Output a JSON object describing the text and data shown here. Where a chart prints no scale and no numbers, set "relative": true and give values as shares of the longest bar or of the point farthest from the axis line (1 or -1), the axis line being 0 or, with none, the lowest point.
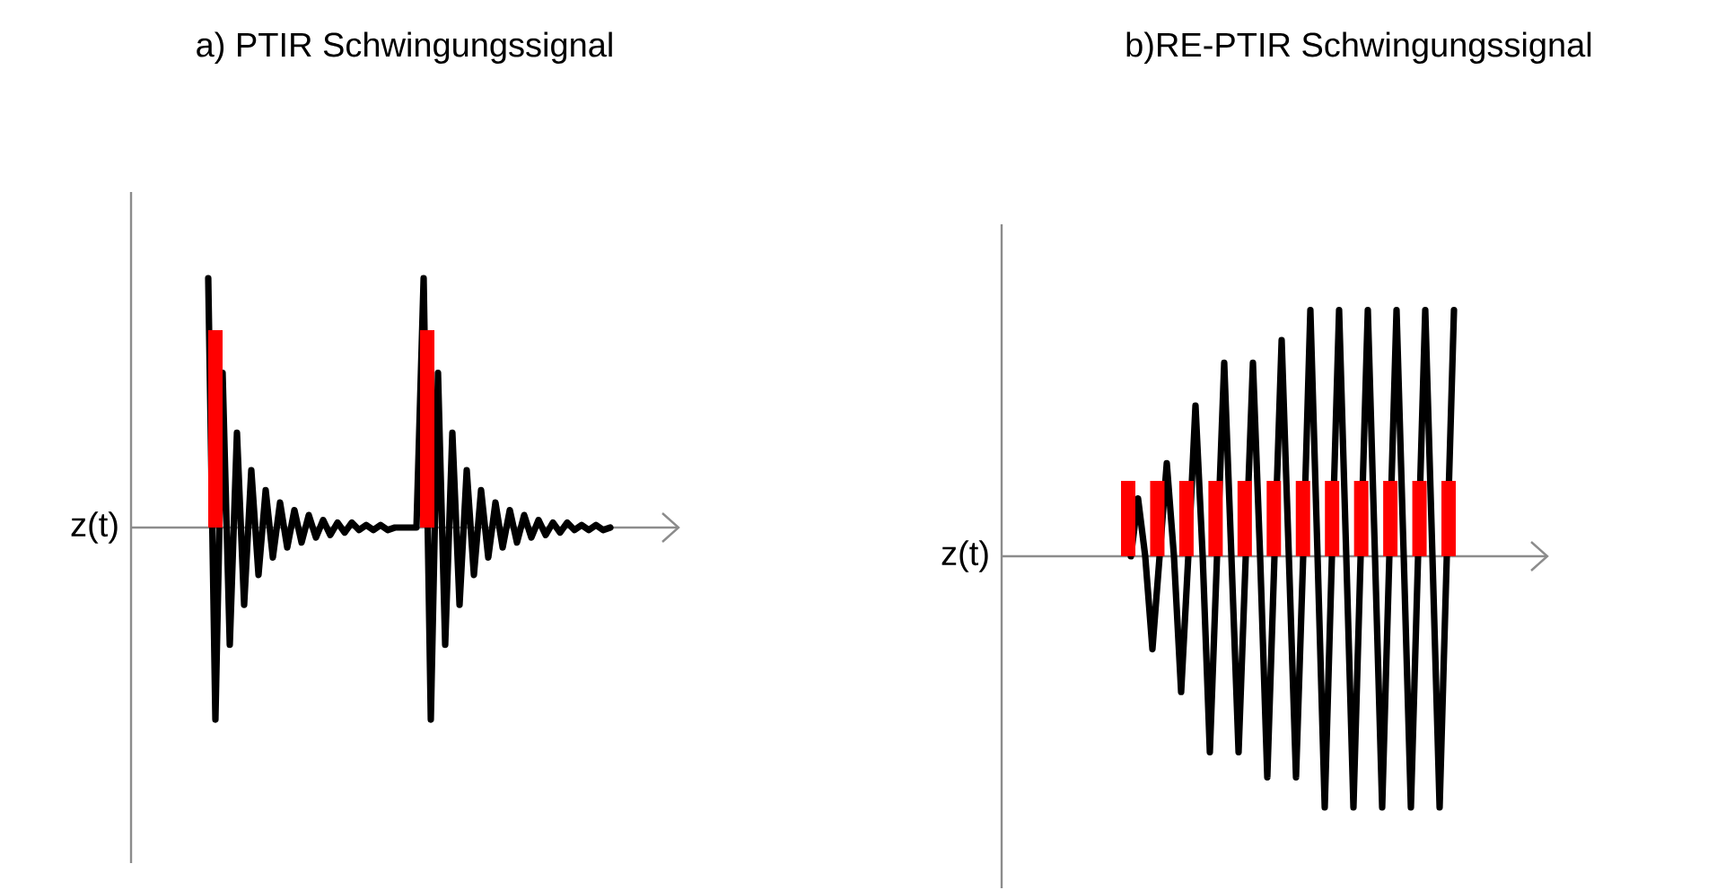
{
  "chart_data": [
    {
      "type": "line",
      "title": "a) PTIR Schwingungssignal",
      "ylabel": "z(t)",
      "relative": true,
      "categories": [
        null,
        null,
        null,
        null,
        null,
        null,
        null,
        null,
        null,
        null,
        null,
        null,
        null,
        null,
        null,
        null,
        null,
        null,
        null,
        null,
        null,
        null,
        null,
        null,
        null,
        null,
        null,
        null,
        null,
        null,
        null,
        null,
        null,
        null,
        null,
        null,
        null,
        null,
        null,
        null,
        null,
        null,
        null,
        null,
        null,
        null,
        null,
        null,
        null,
        null,
        null,
        null,
        null,
        null,
        null,
        null,
        null
      ],
      "series": [
        {
          "color": "#000000",
          "values": [
            1,
            -0.77,
            0.62,
            -0.47,
            0.38,
            -0.31,
            0.23,
            -0.19,
            0.15,
            -0.12,
            0.1,
            -0.08,
            0.07,
            -0.06,
            0.05,
            -0.04,
            0.03,
            -0.03,
            0.02,
            -0.02,
            0.02,
            -0.01,
            0.01,
            -0.01,
            0.01,
            -0.01,
            0,
            0,
            0,
            0,
            1,
            -0.77,
            0.62,
            -0.47,
            0.38,
            -0.31,
            0.23,
            -0.19,
            0.15,
            -0.12,
            0.1,
            -0.08,
            0.07,
            -0.06,
            0.05,
            -0.04,
            0.03,
            -0.03,
            0.02,
            -0.02,
            0.02,
            -0.01,
            0.01,
            -0.01,
            0.01,
            -0.01,
            0
          ]
        }
      ]
    },
    {
      "type": "bar",
      "relative": true,
      "categories": [
        null,
        null
      ],
      "series": [
        {
          "color": "#ff0000",
          "values": [
            1,
            1
          ]
        }
      ]
    },
    {
      "type": "line",
      "title": "b)RE-PTIR Schwingungssignal",
      "ylabel": "z(t)",
      "relative": true,
      "categories": [
        null,
        null,
        null,
        null,
        null,
        null,
        null,
        null,
        null,
        null,
        null,
        null,
        null,
        null,
        null,
        null,
        null,
        null,
        null,
        null,
        null,
        null,
        null,
        null,
        null,
        null,
        null,
        null,
        null,
        null,
        null,
        null,
        null,
        null,
        null,
        null,
        null,
        null,
        null,
        null,
        null,
        null,
        null,
        null,
        null,
        null
      ],
      "series": [
        {
          "color": "#000000",
          "values": [
            0,
            0.23,
            0,
            -0.37,
            0,
            0.37,
            0,
            -0.54,
            0,
            0.6,
            0,
            -0.78,
            0,
            0.77,
            0,
            -0.78,
            0,
            0.77,
            0,
            -0.88,
            0,
            0.86,
            0,
            -0.88,
            0,
            0.98,
            0,
            -1,
            0,
            0.98,
            0,
            -1,
            0,
            0.98,
            0,
            -1,
            0,
            0.98,
            0,
            -1,
            0,
            0.98,
            0,
            -1,
            0,
            0.98
          ]
        }
      ]
    },
    {
      "type": "bar",
      "relative": true,
      "categories": [
        null,
        null,
        null,
        null,
        null,
        null,
        null,
        null,
        null,
        null,
        null,
        null
      ],
      "series": [
        {
          "color": "#ff0000",
          "values": [
            1,
            1,
            1,
            1,
            1,
            1,
            1,
            1,
            1,
            1,
            1,
            1
          ]
        }
      ]
    }
  ]
}
